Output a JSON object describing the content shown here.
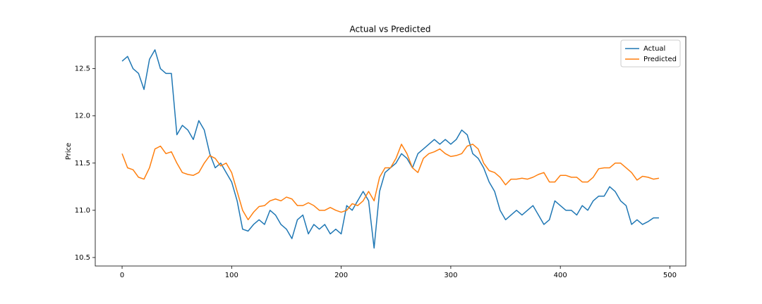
{
  "chart_data": {
    "type": "line",
    "title": "Actual vs Predicted",
    "y_label": "Price",
    "x": [
      0,
      5,
      10,
      15,
      20,
      25,
      30,
      35,
      40,
      45,
      50,
      55,
      60,
      65,
      70,
      75,
      80,
      85,
      90,
      95,
      100,
      105,
      110,
      115,
      120,
      125,
      130,
      135,
      140,
      145,
      150,
      155,
      160,
      165,
      170,
      175,
      180,
      185,
      190,
      195,
      200,
      205,
      210,
      215,
      220,
      225,
      230,
      235,
      240,
      245,
      250,
      255,
      260,
      265,
      270,
      275,
      280,
      285,
      290,
      295,
      300,
      305,
      310,
      315,
      320,
      325,
      330,
      335,
      340,
      345,
      350,
      355,
      360,
      365,
      370,
      375,
      380,
      385,
      390,
      395,
      400,
      405,
      410,
      415,
      420,
      425,
      430,
      435,
      440,
      445,
      450,
      455,
      460,
      465,
      470,
      475,
      480,
      485,
      490
    ],
    "series": [
      {
        "name": "Actual",
        "color": "#1f77b4",
        "values": [
          12.58,
          12.63,
          12.5,
          12.45,
          12.28,
          12.6,
          12.7,
          12.5,
          12.45,
          12.45,
          11.8,
          11.9,
          11.85,
          11.75,
          11.95,
          11.85,
          11.6,
          11.45,
          11.5,
          11.4,
          11.3,
          11.1,
          10.8,
          10.78,
          10.85,
          10.9,
          10.85,
          11.0,
          10.95,
          10.85,
          10.8,
          10.7,
          10.9,
          10.95,
          10.75,
          10.85,
          10.8,
          10.85,
          10.75,
          10.8,
          10.75,
          11.05,
          11.0,
          11.1,
          11.2,
          11.1,
          10.6,
          11.2,
          11.4,
          11.45,
          11.5,
          11.6,
          11.55,
          11.45,
          11.6,
          11.65,
          11.7,
          11.75,
          11.7,
          11.75,
          11.7,
          11.75,
          11.85,
          11.8,
          11.6,
          11.55,
          11.45,
          11.3,
          11.2,
          11.0,
          10.9,
          10.95,
          11.0,
          10.95,
          11.0,
          11.05,
          10.95,
          10.85,
          10.9,
          11.1,
          11.05,
          11.0,
          11.0,
          10.95,
          11.05,
          11.0,
          11.1,
          11.15,
          11.15,
          11.25,
          11.2,
          11.1,
          11.05,
          10.85,
          10.9,
          10.85,
          10.88,
          10.92,
          10.92
        ]
      },
      {
        "name": "Predicted",
        "color": "#ff7f0e",
        "values": [
          11.6,
          11.45,
          11.43,
          11.35,
          11.33,
          11.45,
          11.65,
          11.68,
          11.6,
          11.62,
          11.5,
          11.4,
          11.38,
          11.37,
          11.4,
          11.5,
          11.58,
          11.55,
          11.47,
          11.5,
          11.4,
          11.2,
          11.0,
          10.9,
          10.98,
          11.04,
          11.05,
          11.1,
          11.12,
          11.1,
          11.14,
          11.12,
          11.05,
          11.05,
          11.08,
          11.05,
          11.0,
          11.0,
          11.03,
          11.0,
          10.98,
          11.0,
          11.07,
          11.05,
          11.1,
          11.2,
          11.1,
          11.35,
          11.45,
          11.45,
          11.55,
          11.7,
          11.6,
          11.45,
          11.4,
          11.55,
          11.6,
          11.62,
          11.65,
          11.6,
          11.57,
          11.58,
          11.6,
          11.68,
          11.7,
          11.65,
          11.5,
          11.42,
          11.4,
          11.35,
          11.27,
          11.33,
          11.33,
          11.34,
          11.33,
          11.35,
          11.38,
          11.4,
          11.3,
          11.3,
          11.37,
          11.37,
          11.35,
          11.35,
          11.3,
          11.3,
          11.35,
          11.44,
          11.45,
          11.45,
          11.5,
          11.5,
          11.45,
          11.4,
          11.32,
          11.36,
          11.35,
          11.33,
          11.34
        ]
      }
    ],
    "xlim": [
      -24.5,
      514.5
    ],
    "xticks": [
      0,
      100,
      200,
      300,
      400,
      500
    ],
    "ylim": [
      10.41,
      12.84
    ],
    "yticks": [
      10.5,
      {
        "value": 11.0,
        "label": "11.0"
      },
      11.5,
      {
        "value": 12.0,
        "label": "12.0"
      },
      12.5
    ],
    "grid": false,
    "legend": "upper right"
  }
}
